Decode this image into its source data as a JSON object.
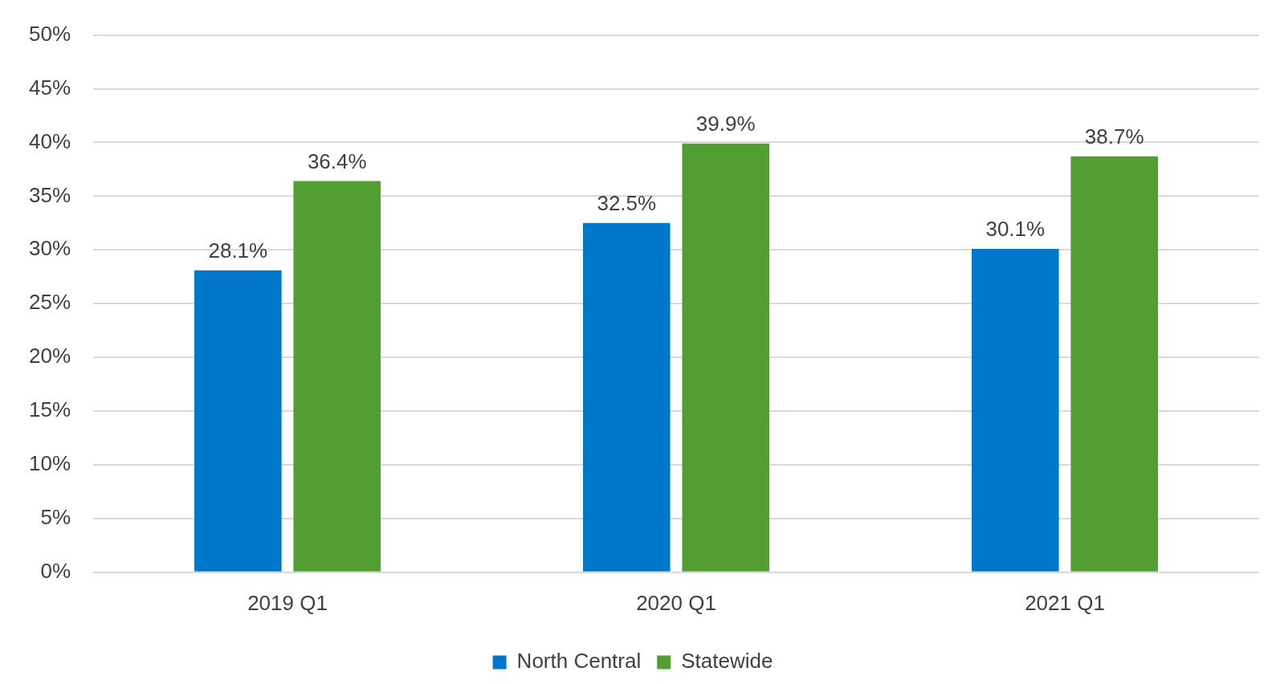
{
  "chart_data": {
    "type": "bar",
    "categories": [
      "2019 Q1",
      "2020 Q1",
      "2021 Q1"
    ],
    "series": [
      {
        "name": "North Central",
        "color": "#0077c8",
        "values": [
          28.1,
          32.5,
          30.1
        ],
        "value_labels": [
          "28.1%",
          "32.5%",
          "30.1%"
        ]
      },
      {
        "name": "Statewide",
        "color": "#529e32",
        "values": [
          36.4,
          39.9,
          38.7
        ],
        "value_labels": [
          "36.4%",
          "39.9%",
          "38.7%"
        ]
      }
    ],
    "ylim": [
      0,
      50
    ],
    "yticks": [
      {
        "value": 0,
        "label": "0%"
      },
      {
        "value": 5,
        "label": "5%"
      },
      {
        "value": 10,
        "label": "10%"
      },
      {
        "value": 15,
        "label": "15%"
      },
      {
        "value": 20,
        "label": "20%"
      },
      {
        "value": 25,
        "label": "25%"
      },
      {
        "value": 30,
        "label": "30%"
      },
      {
        "value": 35,
        "label": "35%"
      },
      {
        "value": 40,
        "label": "40%"
      },
      {
        "value": 45,
        "label": "45%"
      },
      {
        "value": 50,
        "label": "50%"
      }
    ],
    "grid": "y",
    "legend": "bottom"
  }
}
